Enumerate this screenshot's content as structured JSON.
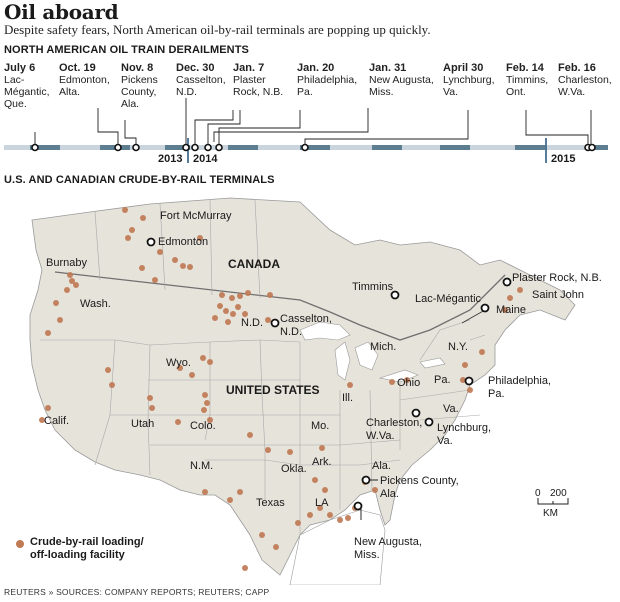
{
  "title": "Oil aboard",
  "subtitle": "Despite safety fears, North American oil-by-rail terminals are popping up quickly.",
  "timeline": {
    "heading": "NORTH AMERICAN OIL TRAIN DERAILMENTS",
    "years": [
      "2013",
      "2014",
      "2015"
    ],
    "events": [
      {
        "date": "July 6",
        "place": "Lac-\nMégantic,\nQue."
      },
      {
        "date": "Oct. 19",
        "place": "Edmonton,\nAlta."
      },
      {
        "date": "Nov. 8",
        "place": "Pickens\nCounty,\nAla."
      },
      {
        "date": "Dec. 30",
        "place": "Casselton,\nN.D."
      },
      {
        "date": "Jan. 7",
        "place": "Plaster\nRock, N.B."
      },
      {
        "date": "Jan. 20",
        "place": "Philadelphia,\nPa."
      },
      {
        "date": "Jan. 31",
        "place": "New Augusta,\nMiss."
      },
      {
        "date": "April 30",
        "place": "Lynchburg,\nVa."
      },
      {
        "date": "Feb. 14",
        "place": "Timmins,\nOnt."
      },
      {
        "date": "Feb. 16",
        "place": "Charleston,\nW.Va."
      }
    ]
  },
  "map": {
    "heading": "U.S. AND CANADIAN CRUDE-BY-RAIL TERMINALS",
    "countries": {
      "canada": "CANADA",
      "us": "UNITED STATES"
    },
    "regions": [
      "Wash.",
      "Calif.",
      "Utah",
      "Colo.",
      "Wyo.",
      "N.D.",
      "N.M.",
      "Okla.",
      "Texas",
      "Ark.",
      "LA",
      "Mo.",
      "Ill.",
      "Mich.",
      "Ohio",
      "Pa.",
      "N.Y.",
      "Va.",
      "Ala.",
      "Maine",
      "Fort McMurray",
      "Burnaby",
      "Saint John"
    ],
    "derailment_sites": [
      "Edmonton",
      "Casselton,\nN.D.",
      "Timmins",
      "Lac-Mégantic",
      "Plaster Rock, N.B.",
      "Philadelphia,\nPa.",
      "Charleston,\nW.Va.",
      "Lynchburg,\nVa.",
      "Pickens County,\nAla.",
      "New Augusta,\nMiss."
    ],
    "scale": {
      "zero": "0",
      "value": "200",
      "unit": "KM"
    },
    "legend": "Crude-by-rail loading/\noff-loading facility",
    "colors": {
      "land": "#e8e5dc",
      "water": "#ffffff",
      "terminal": "#c07a55",
      "borders": "#8a8a8a"
    }
  },
  "footer": "REUTERS » SOURCES: COMPANY REPORTS; REUTERS; CAPP"
}
